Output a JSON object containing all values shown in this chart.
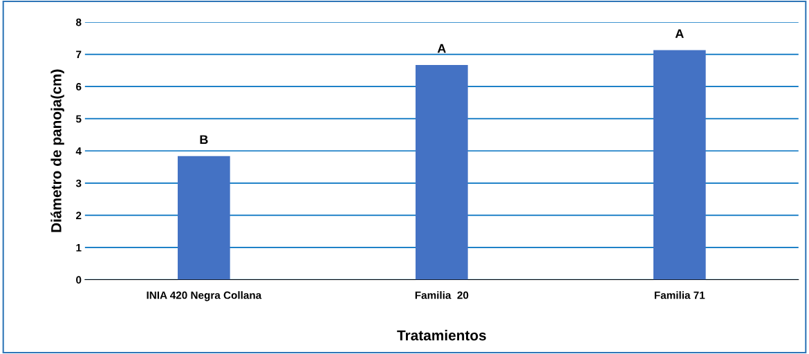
{
  "chart_data": {
    "type": "bar",
    "xlabel": "Tratamientos",
    "ylabel": "Diámetro de panoja(cm)",
    "categories": [
      "INIA 420 Negra Collana",
      "Familia  20",
      "Familia 71"
    ],
    "values": [
      3.84,
      6.67,
      7.13
    ],
    "color": "#4472c4",
    "ylim": [
      0,
      8
    ],
    "yticks": [
      0,
      1,
      2,
      3,
      4,
      5,
      6,
      7,
      8
    ],
    "grid": "y",
    "annotations": [
      {
        "text": "B",
        "x": "INIA 420 Negra Collana",
        "y": 3.84
      },
      {
        "text": "A",
        "x": "Familia  20",
        "y": 6.67
      },
      {
        "text": "A",
        "x": "Familia 71",
        "y": 7.13
      }
    ]
  }
}
